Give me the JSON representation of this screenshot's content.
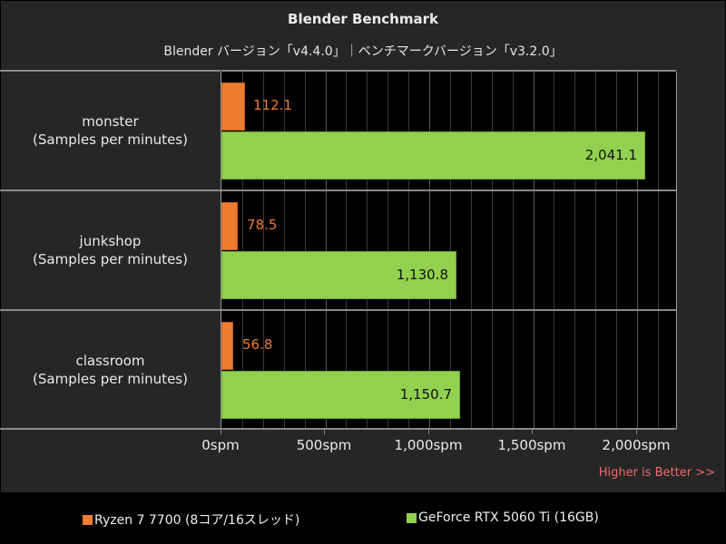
{
  "chart_data": {
    "type": "bar",
    "orientation": "horizontal",
    "title": "Blender Benchmark",
    "subtitle": "Blender バージョン「v4.4.0」｜ベンチマークバージョン「v3.2.0」",
    "categories": [
      {
        "name": "monster",
        "unit_label": "(Samples per minutes)"
      },
      {
        "name": "junkshop",
        "unit_label": "(Samples per minutes)"
      },
      {
        "name": "classroom",
        "unit_label": "(Samples per minutes)"
      }
    ],
    "series": [
      {
        "name": "Ryzen 7 7700 (8コア/16スレッド)",
        "color": "#ED7D31",
        "values": [
          112.1,
          78.5,
          56.8
        ],
        "labels": [
          "112.1",
          "78.5",
          "56.8"
        ]
      },
      {
        "name": "GeForce RTX 5060 Ti (16GB)",
        "color": "#92D050",
        "values": [
          2041.1,
          1130.8,
          1150.7
        ],
        "labels": [
          "2,041.1",
          "1,130.8",
          "1,150.7"
        ]
      }
    ],
    "xlabel": "",
    "ylabel": "",
    "xlim": [
      0,
      2200
    ],
    "xticks": [
      0,
      500,
      1000,
      1500,
      2000
    ],
    "xtick_labels": [
      "0spm",
      "500spm",
      "1,000spm",
      "1,500spm",
      "2,000spm"
    ],
    "minor_grid_step": 100,
    "grid": true,
    "legend_position": "bottom",
    "annotation": "Higher is Better >>"
  },
  "header": {
    "title": "Blender Benchmark",
    "subtitle": "Blender バージョン「v4.4.0」｜ベンチマークバージョン「v3.2.0」"
  },
  "rows": [
    {
      "name": "monster",
      "unit": "(Samples per minutes)",
      "cpu": "112.1",
      "gpu": "2,041.1"
    },
    {
      "name": "junkshop",
      "unit": "(Samples per minutes)",
      "cpu": "78.5",
      "gpu": "1,130.8"
    },
    {
      "name": "classroom",
      "unit": "(Samples per minutes)",
      "cpu": "56.8",
      "gpu": "1,150.7"
    }
  ],
  "axis": {
    "ticks": [
      "0spm",
      "500spm",
      "1,000spm",
      "1,500spm",
      "2,000spm"
    ]
  },
  "annotation": "Higher is Better >>",
  "legend": {
    "items": [
      {
        "label": "Ryzen 7 7700 (8コア/16スレッド)",
        "color": "#ED7D31"
      },
      {
        "label": "GeForce RTX 5060 Ti (16GB)",
        "color": "#92D050"
      }
    ]
  }
}
